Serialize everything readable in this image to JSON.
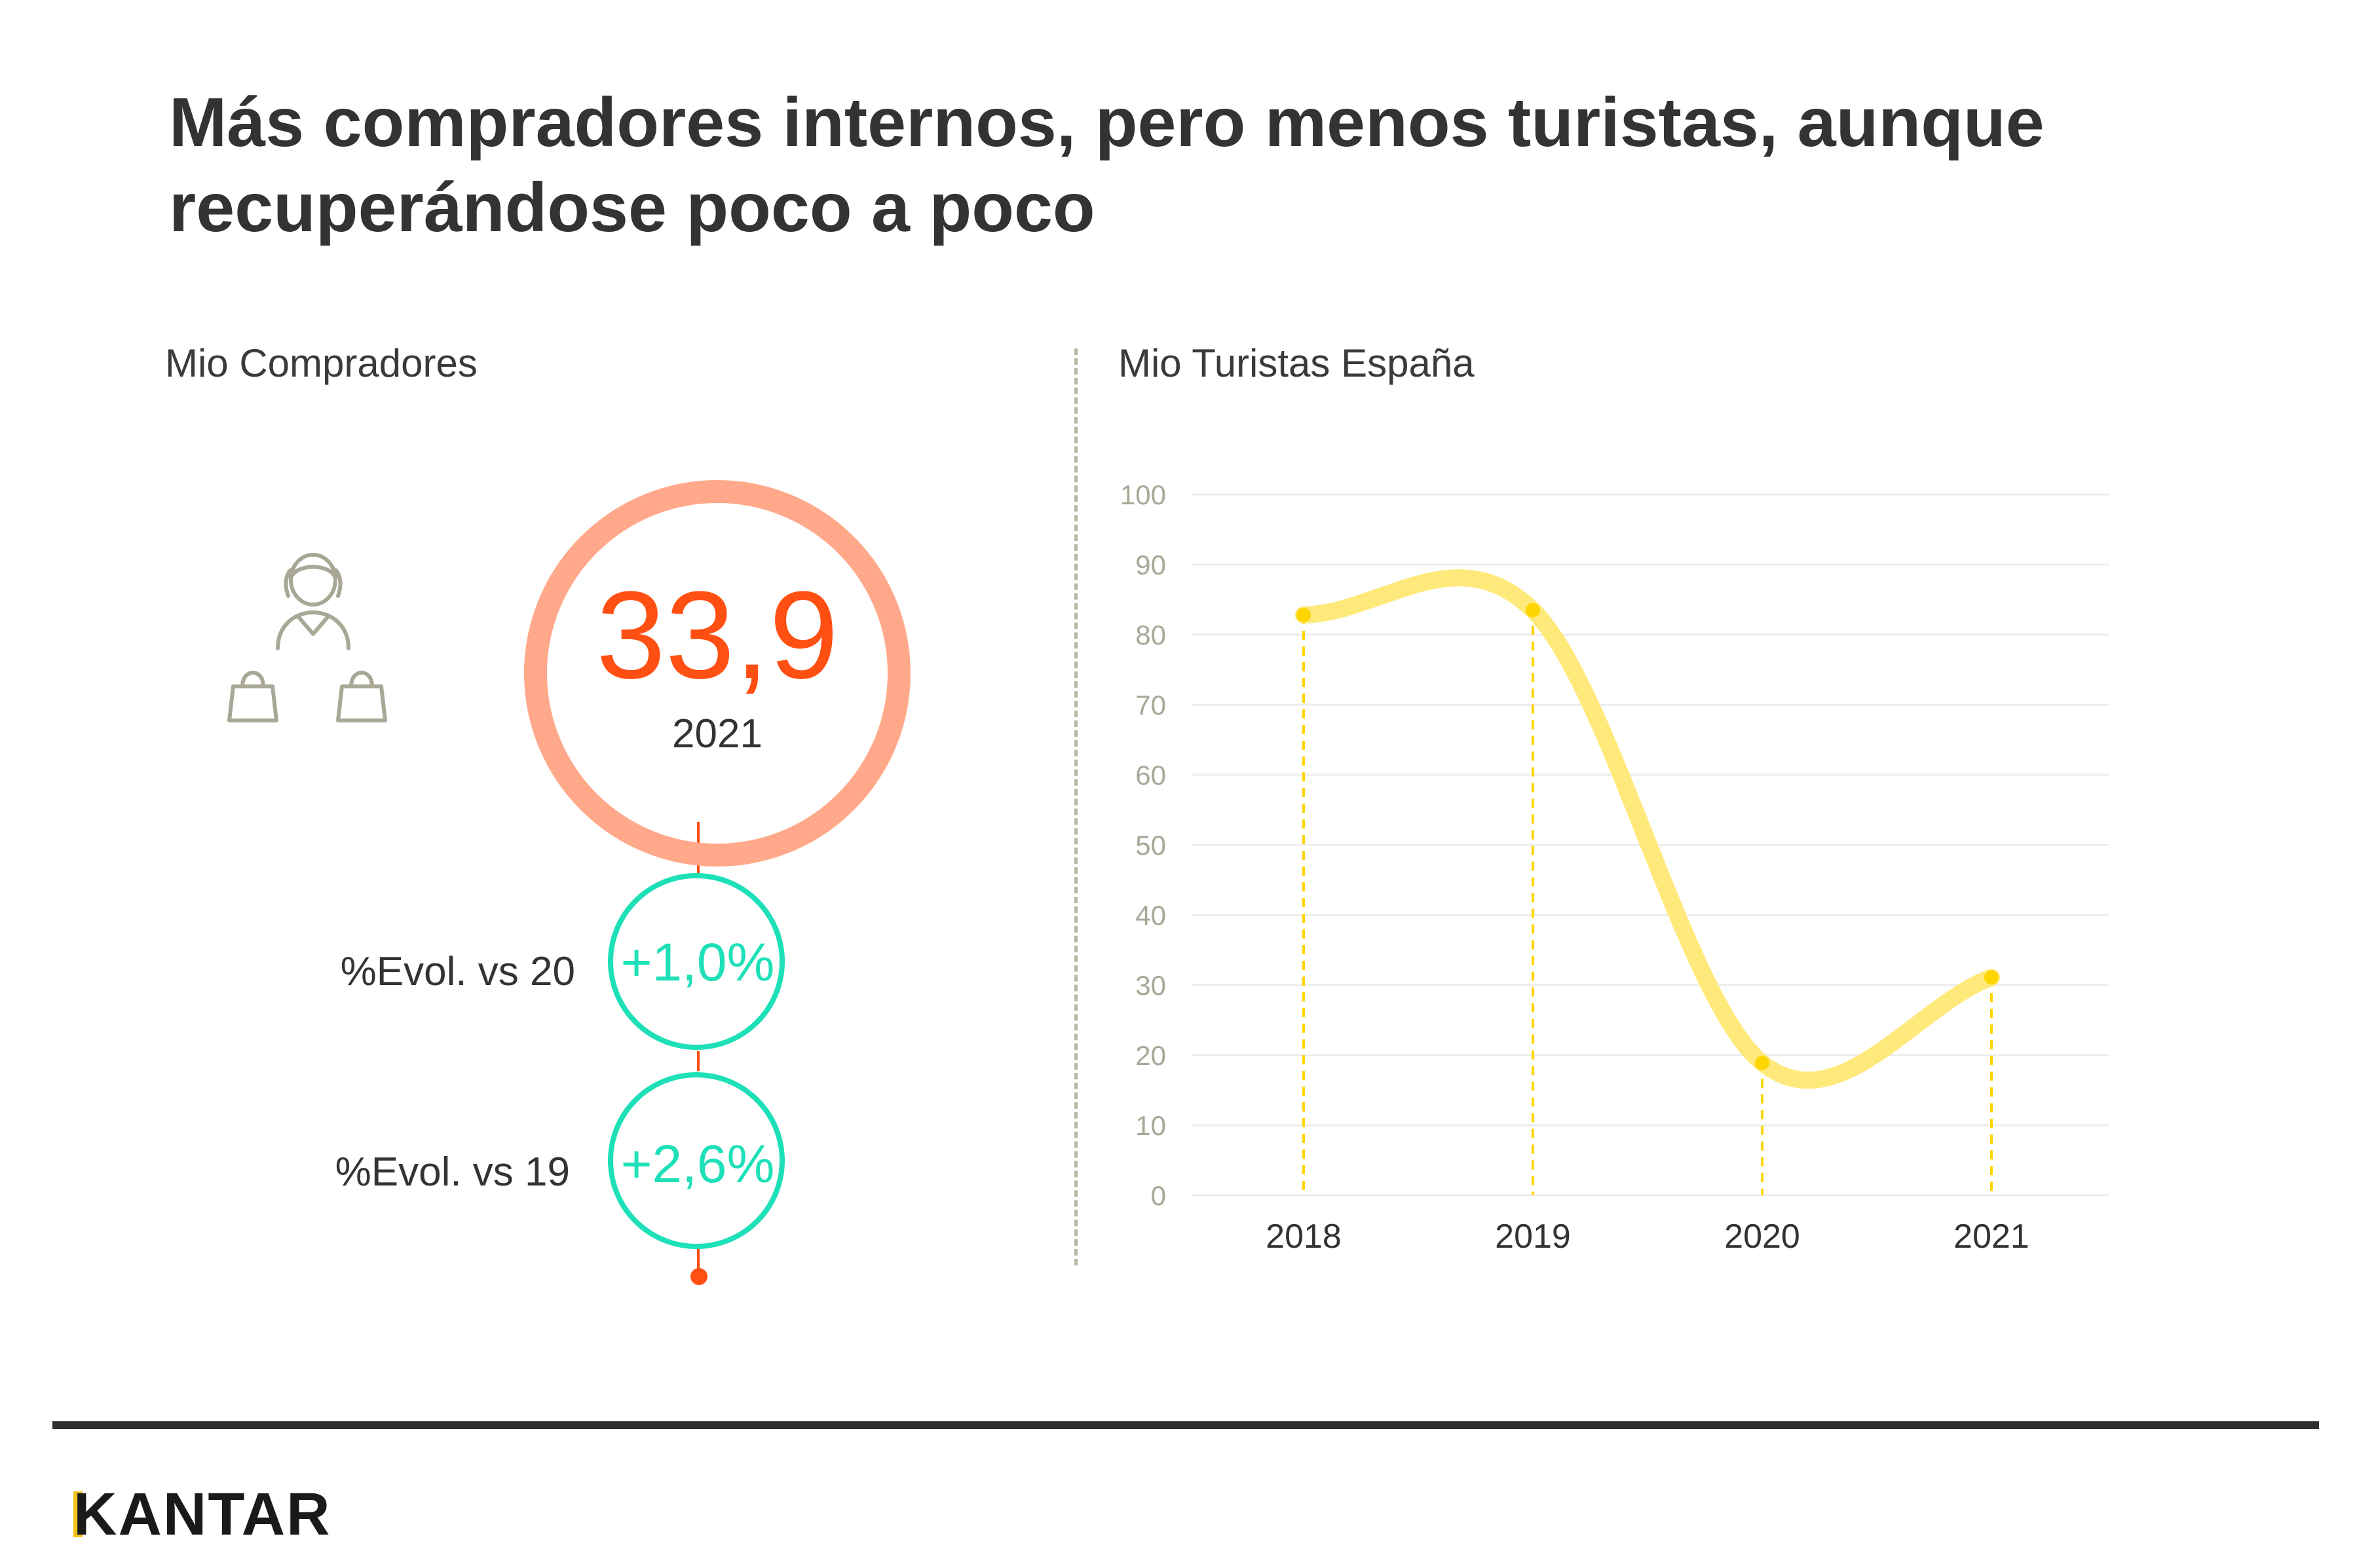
{
  "title": "Más compradores internos, pero menos turistas, aunque recuperándose poco a poco",
  "left_panel": {
    "label": "Mio Compradores",
    "value": "33,9",
    "year": "2021",
    "evolutions": [
      {
        "label": "%Evol. vs 20",
        "value": "+1,0%"
      },
      {
        "label": "%Evol. vs 19",
        "value": "+2,6%"
      }
    ]
  },
  "right_panel": {
    "label": "Mio Turistas España"
  },
  "chart_data": {
    "type": "line",
    "title": "Mio Turistas España",
    "categories": [
      "2018",
      "2019",
      "2020",
      "2021"
    ],
    "values": [
      82.8,
      83.5,
      18.9,
      31.1
    ],
    "ylim": [
      0,
      100
    ],
    "yticks": [
      "0",
      "10",
      "20",
      "30",
      "40",
      "50",
      "60",
      "70",
      "80",
      "90",
      "100"
    ],
    "xlabel": "",
    "ylabel": "",
    "grid": true,
    "colors": {
      "line": "#ffe97a",
      "point": "#ffd500",
      "guide": "#ffd500",
      "grid": "#ececec",
      "tick": "#a9a796"
    }
  },
  "colors": {
    "accent_orange": "#ff4f12",
    "ring_orange": "#ffa98a",
    "teal": "#1ee0b8",
    "brand_yellow": "#f3c21a"
  },
  "icons": {
    "shopper": "person-with-bags-icon"
  },
  "footer": {
    "logo": "KANTAR"
  }
}
